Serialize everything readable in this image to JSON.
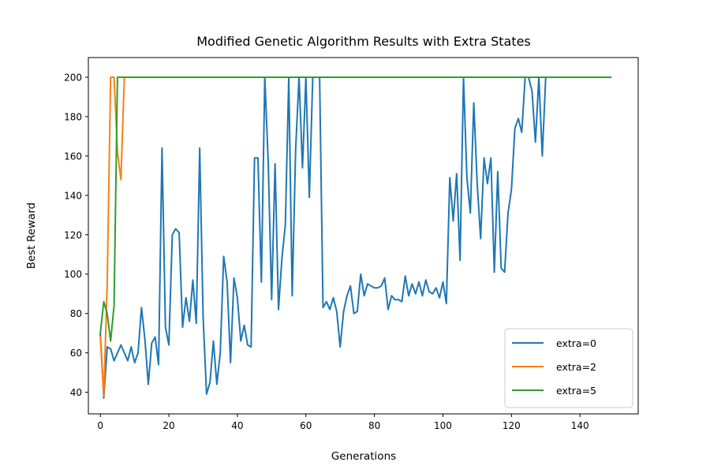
{
  "chart_data": {
    "type": "line",
    "title": "Modified Genetic Algorithm Results with Extra States",
    "xlabel": "Generations",
    "ylabel": "Best Reward",
    "xlim": [
      -3.5,
      157
    ],
    "ylim": [
      29,
      210
    ],
    "xticks": [
      0,
      20,
      40,
      60,
      80,
      100,
      120,
      140
    ],
    "yticks": [
      40,
      60,
      80,
      100,
      120,
      140,
      160,
      180,
      200
    ],
    "grid": false,
    "legend_position": "lower right",
    "series": [
      {
        "name": "extra=0",
        "color": "#1f77b4",
        "x": [
          0,
          1,
          2,
          3,
          4,
          5,
          6,
          7,
          8,
          9,
          10,
          11,
          12,
          13,
          14,
          15,
          16,
          17,
          18,
          19,
          20,
          21,
          22,
          23,
          24,
          25,
          26,
          27,
          28,
          29,
          30,
          31,
          32,
          33,
          34,
          35,
          36,
          37,
          38,
          39,
          40,
          41,
          42,
          43,
          44,
          45,
          46,
          47,
          48,
          49,
          50,
          51,
          52,
          53,
          54,
          55,
          56,
          57,
          58,
          59,
          60,
          61,
          62,
          63,
          64,
          65,
          66,
          67,
          68,
          69,
          70,
          71,
          72,
          73,
          74,
          75,
          76,
          77,
          78,
          79,
          80,
          81,
          82,
          83,
          84,
          85,
          86,
          87,
          88,
          89,
          90,
          91,
          92,
          93,
          94,
          95,
          96,
          97,
          98,
          99,
          100,
          101,
          102,
          103,
          104,
          105,
          106,
          107,
          108,
          109,
          110,
          111,
          112,
          113,
          114,
          115,
          116,
          117,
          118,
          119,
          120,
          121,
          122,
          123,
          124,
          125,
          126,
          127,
          128,
          129,
          130
        ],
        "values": [
          70,
          37,
          63,
          62,
          56,
          60,
          64,
          60,
          56,
          63,
          55,
          60,
          83,
          67,
          44,
          65,
          68,
          54,
          164,
          73,
          64,
          120,
          123,
          121,
          73,
          88,
          76,
          97,
          75,
          164,
          78,
          39,
          45,
          66,
          44,
          60,
          109,
          96,
          55,
          98,
          88,
          66,
          74,
          64,
          63,
          159,
          159,
          96,
          200,
          157,
          87,
          156,
          82,
          108,
          125,
          200,
          89,
          163,
          200,
          154,
          200,
          139,
          200,
          200,
          200,
          83,
          86,
          82,
          88,
          81,
          63,
          81,
          89,
          94,
          80,
          81,
          100,
          89,
          95,
          94,
          93,
          93,
          94,
          98,
          82,
          89,
          87,
          87,
          86,
          99,
          89,
          95,
          90,
          96,
          89,
          97,
          91,
          90,
          93,
          88,
          96,
          85,
          149,
          127,
          151,
          107,
          200,
          149,
          131,
          187,
          146,
          118,
          159,
          146,
          159,
          101,
          152,
          103,
          101,
          131,
          143,
          174,
          179,
          172,
          200,
          200,
          193,
          167,
          200,
          160,
          200
        ]
      },
      {
        "name": "extra=2",
        "color": "#ff7f0e",
        "x": [
          0,
          1,
          2,
          3,
          4,
          5,
          6,
          7
        ],
        "values": [
          68,
          38,
          95,
          200,
          200,
          162,
          148,
          200
        ]
      },
      {
        "name": "extra=5",
        "color": "#2ca02c",
        "x": [
          0,
          1,
          2,
          3,
          4,
          5,
          6,
          7,
          8,
          9,
          10,
          11,
          12,
          13,
          14,
          15,
          16,
          17,
          18,
          19,
          20,
          21,
          22,
          23,
          24,
          25,
          26,
          27,
          28,
          29,
          30,
          31,
          32,
          33,
          34,
          35,
          36,
          37,
          38,
          39,
          40,
          41,
          42,
          43,
          44,
          45,
          46,
          47,
          48,
          49,
          50,
          51,
          52,
          53,
          54,
          55,
          56,
          57,
          58,
          59,
          60,
          61,
          62,
          63,
          64,
          65,
          66,
          67,
          68,
          69,
          70,
          71,
          72,
          73,
          74,
          75,
          76,
          77,
          78,
          79,
          80,
          81,
          82,
          83,
          84,
          85,
          86,
          87,
          88,
          89,
          90,
          91,
          92,
          93,
          94,
          95,
          96,
          97,
          98,
          99,
          100,
          101,
          102,
          103,
          104,
          105,
          106,
          107,
          108,
          109,
          110,
          111,
          112,
          113,
          114,
          115,
          116,
          117,
          118,
          119,
          120,
          121,
          122,
          123,
          124,
          125,
          126,
          127,
          128,
          129,
          130,
          131,
          132,
          133,
          134,
          135,
          136,
          137,
          138,
          139,
          140,
          141,
          142,
          143,
          144,
          145,
          146,
          147,
          148,
          149
        ],
        "values": [
          70,
          86,
          80,
          66,
          84,
          200,
          200,
          200,
          200,
          200,
          200,
          200,
          200,
          200,
          200,
          200,
          200,
          200,
          200,
          200,
          200,
          200,
          200,
          200,
          200,
          200,
          200,
          200,
          200,
          200,
          200,
          200,
          200,
          200,
          200,
          200,
          200,
          200,
          200,
          200,
          200,
          200,
          200,
          200,
          200,
          200,
          200,
          200,
          200,
          200,
          200,
          200,
          200,
          200,
          200,
          200,
          200,
          200,
          200,
          200,
          200,
          200,
          200,
          200,
          200,
          200,
          200,
          200,
          200,
          200,
          200,
          200,
          200,
          200,
          200,
          200,
          200,
          200,
          200,
          200,
          200,
          200,
          200,
          200,
          200,
          200,
          200,
          200,
          200,
          200,
          200,
          200,
          200,
          200,
          200,
          200,
          200,
          200,
          200,
          200,
          200,
          200,
          200,
          200,
          200,
          200,
          200,
          200,
          200,
          200,
          200,
          200,
          200,
          200,
          200,
          200,
          200,
          200,
          200,
          200,
          200,
          200,
          200,
          200,
          200,
          200,
          200,
          200,
          200,
          200,
          200,
          200,
          200,
          200,
          200,
          200,
          200,
          200,
          200,
          200,
          200,
          200,
          200,
          200,
          200,
          200,
          200,
          200,
          200,
          200
        ]
      }
    ]
  }
}
